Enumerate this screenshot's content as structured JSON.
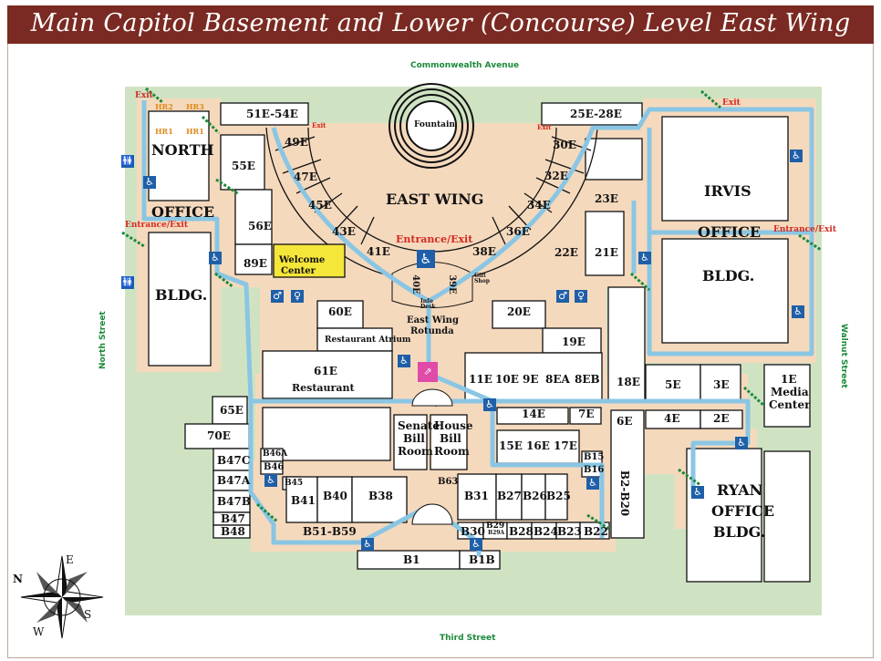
{
  "title": "Main Capitol Basement and Lower (Concourse) Level East Wing",
  "streets": {
    "north": "Commonwealth Avenue",
    "south": "Third Street",
    "west": "North Street",
    "east": "Walnut Street"
  },
  "buildings": {
    "north_office": [
      "NORTH",
      "OFFICE",
      "BLDG."
    ],
    "irvis_office": [
      "IRVIS",
      "OFFICE",
      "BLDG."
    ],
    "ryan_office": [
      "RYAN",
      "OFFICE",
      "BLDG."
    ],
    "east_wing": "EAST WING"
  },
  "rooms": {
    "r51e54e": "51E-54E",
    "r25e28e": "25E-28E",
    "r49e": "49E",
    "r47e": "47E",
    "r45e": "45E",
    "r43e": "43E",
    "r41e": "41E",
    "r30e": "30E",
    "r32e": "32E",
    "r34e": "34E",
    "r36e": "36E",
    "r38e": "38E",
    "r22e": "22E",
    "r21e": "21E",
    "r23e": "23E",
    "r55e": "55E",
    "r56e": "56E",
    "r89e": "89E",
    "welcome": [
      "Welcome",
      "Center"
    ],
    "r40e": "40E",
    "r39e": "39E",
    "r60e": "60E",
    "r20e": "20E",
    "r19e": "19E",
    "atrium": "Restaurant Atrium",
    "r61e": "61E",
    "restaurant": "Restaurant",
    "rotunda": [
      "East Wing",
      "Rotunda"
    ],
    "info": [
      "Info",
      "Desk"
    ],
    "gift": [
      "Gift",
      "Shop"
    ],
    "r11e": "11E",
    "r10e": "10E",
    "r9e": "9E",
    "r8ea": "8EA",
    "r8eb": "8EB",
    "r18e": "18E",
    "r5e": "5E",
    "r3e": "3E",
    "r1e": [
      "1E",
      "Media",
      "Center"
    ],
    "r4e": "4E",
    "r2e": "2E",
    "r6e": "6E",
    "r14e": "14E",
    "r7e": "7E",
    "r15e": "15E",
    "r16e": "16E",
    "r17e": "17E",
    "senate": [
      "Senate",
      "Bill",
      "Room"
    ],
    "house": [
      "House",
      "Bill",
      "Room"
    ],
    "r65e": "65E",
    "r70e": "70E",
    "b47c": "B47C",
    "b46a": "B46A",
    "b46": "B46",
    "b45": "B45",
    "b47a": "B47A",
    "b47b": "B47B",
    "b47": "B47",
    "b48": "B48",
    "b41": "B41",
    "b40": "B40",
    "b38": "B38",
    "b63": "B63",
    "b31": "B31",
    "b27": "B27",
    "b26": "B26",
    "b25": "B25",
    "b15": "B15",
    "b16": "B16",
    "b2b20": "B2-B20",
    "b51b59": "B51-B59",
    "b30": "B30",
    "b29": "B29",
    "b29sub": "B29A",
    "b28": "B28",
    "b24": "B24",
    "b23": "B23",
    "b22": "B22",
    "b1": "B1",
    "b1b": "B1B",
    "fountain": "Fountain"
  },
  "markers": {
    "exit": "Exit",
    "entrance_exit": "Entrance/Exit",
    "hr1": "HR1",
    "hr2": "HR2",
    "hr3": "HR3"
  },
  "compass": {
    "n": "N",
    "e": "E",
    "s": "S",
    "w": "W"
  },
  "colors": {
    "banner": "#7a2a22",
    "grass": "#cfe3c3",
    "corridor": "#f5d9bd",
    "path": "#8ac6e4",
    "access": "#1f5fa8",
    "stairs": "#1b8a3a",
    "welcome": "#f5e63a",
    "exit": "#d12a1f"
  }
}
